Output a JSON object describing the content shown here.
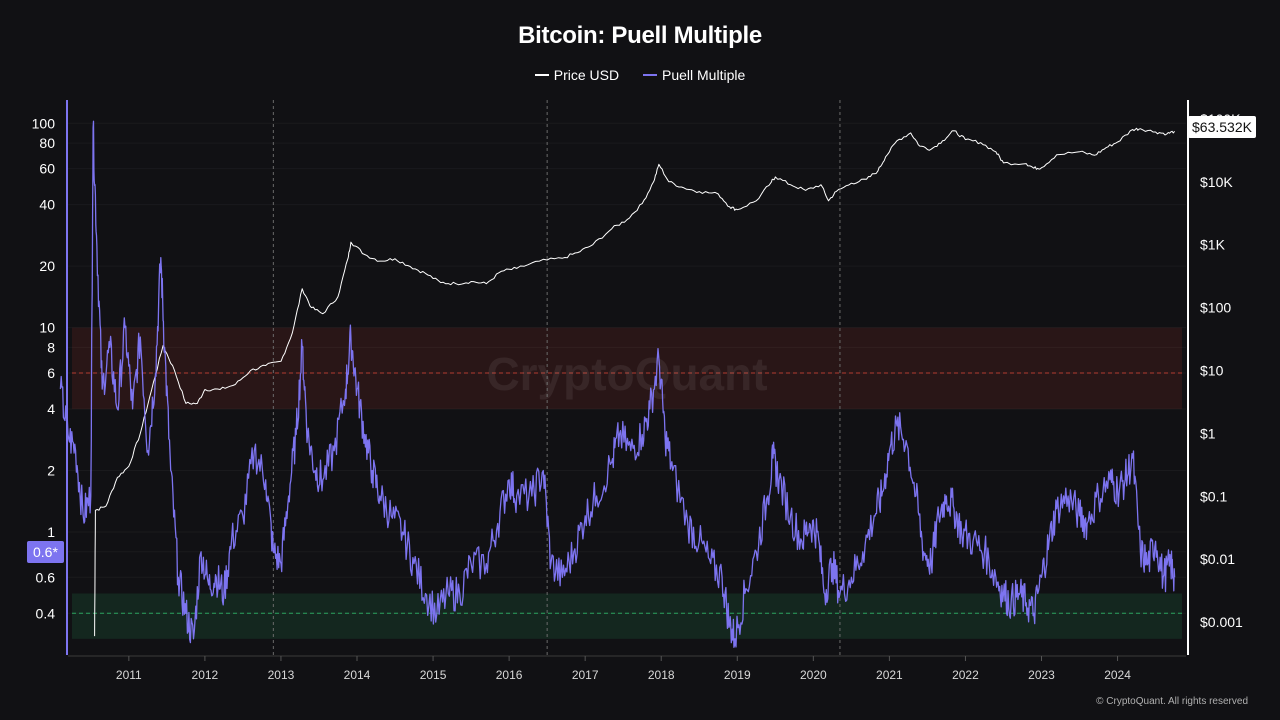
{
  "title": "Bitcoin: Puell Multiple",
  "legend": [
    {
      "name": "Price USD",
      "color": "#ffffff"
    },
    {
      "name": "Puell Multiple",
      "color": "#7d74f0"
    }
  ],
  "watermark": "CryptoQuant",
  "copyright": "© CryptoQuant. All rights reserved",
  "price_badge": "$63.532K",
  "puell_badge": "0.6*",
  "chart_data": {
    "type": "line",
    "x_axis": {
      "ticks": [
        "2011",
        "2012",
        "2013",
        "2014",
        "2015",
        "2016",
        "2017",
        "2018",
        "2019",
        "2020",
        "2021",
        "2022",
        "2023",
        "2024"
      ],
      "range": [
        2010.2,
        2024.9
      ]
    },
    "left_axis": {
      "scale": "log",
      "ticks": [
        "100",
        "80",
        "60",
        "40",
        "20",
        "10",
        "8",
        "6",
        "4",
        "2",
        "1",
        "0.8",
        "0.6",
        "0.4"
      ],
      "range": [
        0.25,
        130
      ]
    },
    "right_axis": {
      "scale": "log",
      "ticks": [
        "$100K",
        "$10K",
        "$1K",
        "$100",
        "$10",
        "$1",
        "$0.1",
        "$0.01",
        "$0.001"
      ],
      "range": [
        0.0003,
        200000
      ]
    },
    "halving_dates": [
      2012.9,
      2016.5,
      2020.35
    ],
    "bands": [
      {
        "name": "overheated",
        "from": 4,
        "to": 10,
        "line": 6,
        "color": "#c0392b"
      },
      {
        "name": "undervalued",
        "from": 0.3,
        "to": 0.5,
        "line": 0.4,
        "color": "#27ae60"
      }
    ],
    "series": [
      {
        "name": "Price USD",
        "axis": "right",
        "color": "#ffffff",
        "points": [
          [
            2010.55,
            0.0006
          ],
          [
            2010.56,
            0.06
          ],
          [
            2010.7,
            0.07
          ],
          [
            2010.85,
            0.2
          ],
          [
            2011.0,
            0.3
          ],
          [
            2011.15,
            1
          ],
          [
            2011.3,
            5
          ],
          [
            2011.45,
            25
          ],
          [
            2011.6,
            10
          ],
          [
            2011.75,
            3
          ],
          [
            2011.9,
            3
          ],
          [
            2012.0,
            5
          ],
          [
            2012.2,
            5
          ],
          [
            2012.4,
            6
          ],
          [
            2012.6,
            10
          ],
          [
            2012.8,
            12
          ],
          [
            2013.0,
            14
          ],
          [
            2013.15,
            40
          ],
          [
            2013.28,
            200
          ],
          [
            2013.4,
            100
          ],
          [
            2013.55,
            80
          ],
          [
            2013.75,
            150
          ],
          [
            2013.88,
            600
          ],
          [
            2013.92,
            1100
          ],
          [
            2014.1,
            700
          ],
          [
            2014.3,
            550
          ],
          [
            2014.5,
            600
          ],
          [
            2014.7,
            450
          ],
          [
            2014.9,
            350
          ],
          [
            2015.1,
            250
          ],
          [
            2015.3,
            240
          ],
          [
            2015.5,
            260
          ],
          [
            2015.7,
            240
          ],
          [
            2015.9,
            380
          ],
          [
            2016.1,
            420
          ],
          [
            2016.4,
            550
          ],
          [
            2016.7,
            610
          ],
          [
            2016.9,
            750
          ],
          [
            2017.1,
            1000
          ],
          [
            2017.35,
            1800
          ],
          [
            2017.55,
            2500
          ],
          [
            2017.75,
            4500
          ],
          [
            2017.9,
            10000
          ],
          [
            2017.97,
            19000
          ],
          [
            2018.1,
            10000
          ],
          [
            2018.3,
            8000
          ],
          [
            2018.5,
            7000
          ],
          [
            2018.75,
            6400
          ],
          [
            2018.9,
            4000
          ],
          [
            2019.0,
            3600
          ],
          [
            2019.25,
            5000
          ],
          [
            2019.45,
            10000
          ],
          [
            2019.5,
            12000
          ],
          [
            2019.7,
            9000
          ],
          [
            2019.9,
            7300
          ],
          [
            2020.1,
            9000
          ],
          [
            2020.2,
            5000
          ],
          [
            2020.3,
            7000
          ],
          [
            2020.5,
            9500
          ],
          [
            2020.7,
            11000
          ],
          [
            2020.85,
            15000
          ],
          [
            2020.95,
            25000
          ],
          [
            2021.1,
            45000
          ],
          [
            2021.28,
            60000
          ],
          [
            2021.4,
            37000
          ],
          [
            2021.55,
            33000
          ],
          [
            2021.7,
            45000
          ],
          [
            2021.85,
            65000
          ],
          [
            2022.0,
            47000
          ],
          [
            2022.2,
            42000
          ],
          [
            2022.4,
            30000
          ],
          [
            2022.5,
            20000
          ],
          [
            2022.8,
            19500
          ],
          [
            2022.9,
            16500
          ],
          [
            2023.0,
            16800
          ],
          [
            2023.2,
            27000
          ],
          [
            2023.5,
            30000
          ],
          [
            2023.7,
            26500
          ],
          [
            2023.85,
            35000
          ],
          [
            2024.0,
            43000
          ],
          [
            2024.2,
            68000
          ],
          [
            2024.3,
            70000
          ],
          [
            2024.5,
            62000
          ],
          [
            2024.65,
            58000
          ],
          [
            2024.75,
            63532
          ]
        ]
      },
      {
        "name": "Puell Multiple",
        "axis": "left",
        "color": "#7d74f0",
        "points": [
          [
            2010.1,
            5
          ],
          [
            2010.2,
            3
          ],
          [
            2010.3,
            2.5
          ],
          [
            2010.4,
            1.2
          ],
          [
            2010.5,
            1.5
          ],
          [
            2010.53,
            95
          ],
          [
            2010.58,
            25
          ],
          [
            2010.65,
            5
          ],
          [
            2010.75,
            8
          ],
          [
            2010.85,
            4
          ],
          [
            2010.95,
            10
          ],
          [
            2011.05,
            4
          ],
          [
            2011.15,
            9
          ],
          [
            2011.25,
            2.5
          ],
          [
            2011.35,
            6
          ],
          [
            2011.42,
            22
          ],
          [
            2011.47,
            8
          ],
          [
            2011.55,
            2
          ],
          [
            2011.65,
            0.6
          ],
          [
            2011.75,
            0.4
          ],
          [
            2011.85,
            0.3
          ],
          [
            2011.95,
            0.8
          ],
          [
            2012.05,
            0.55
          ],
          [
            2012.15,
            0.6
          ],
          [
            2012.25,
            0.5
          ],
          [
            2012.35,
            0.9
          ],
          [
            2012.5,
            1.2
          ],
          [
            2012.65,
            2.5
          ],
          [
            2012.8,
            1.8
          ],
          [
            2012.9,
            0.8
          ],
          [
            2013.0,
            0.7
          ],
          [
            2013.1,
            1.5
          ],
          [
            2013.2,
            3
          ],
          [
            2013.28,
            8
          ],
          [
            2013.35,
            3
          ],
          [
            2013.45,
            2
          ],
          [
            2013.55,
            1.8
          ],
          [
            2013.7,
            2.5
          ],
          [
            2013.85,
            5
          ],
          [
            2013.92,
            9
          ],
          [
            2014.0,
            5
          ],
          [
            2014.1,
            3
          ],
          [
            2014.2,
            2
          ],
          [
            2014.3,
            1.5
          ],
          [
            2014.45,
            1.2
          ],
          [
            2014.6,
            1
          ],
          [
            2014.75,
            0.7
          ],
          [
            2014.9,
            0.5
          ],
          [
            2015.05,
            0.4
          ],
          [
            2015.2,
            0.5
          ],
          [
            2015.35,
            0.5
          ],
          [
            2015.5,
            0.7
          ],
          [
            2015.7,
            0.7
          ],
          [
            2015.85,
            1.1
          ],
          [
            2016.0,
            1.8
          ],
          [
            2016.1,
            1.5
          ],
          [
            2016.3,
            1.5
          ],
          [
            2016.45,
            2
          ],
          [
            2016.55,
            0.7
          ],
          [
            2016.7,
            0.6
          ],
          [
            2016.85,
            0.8
          ],
          [
            2017.0,
            1.2
          ],
          [
            2017.15,
            1.5
          ],
          [
            2017.35,
            2.2
          ],
          [
            2017.45,
            3
          ],
          [
            2017.6,
            2.5
          ],
          [
            2017.75,
            3
          ],
          [
            2017.85,
            4
          ],
          [
            2017.97,
            7
          ],
          [
            2018.05,
            3
          ],
          [
            2018.15,
            2
          ],
          [
            2018.35,
            1.1
          ],
          [
            2018.5,
            0.9
          ],
          [
            2018.65,
            0.7
          ],
          [
            2018.8,
            0.6
          ],
          [
            2018.9,
            0.35
          ],
          [
            2018.97,
            0.3
          ],
          [
            2019.1,
            0.5
          ],
          [
            2019.25,
            0.8
          ],
          [
            2019.4,
            1.5
          ],
          [
            2019.47,
            2.3
          ],
          [
            2019.55,
            1.8
          ],
          [
            2019.7,
            1.2
          ],
          [
            2019.85,
            0.9
          ],
          [
            2019.95,
            1.1
          ],
          [
            2020.05,
            1
          ],
          [
            2020.15,
            0.5
          ],
          [
            2020.25,
            0.7
          ],
          [
            2020.35,
            0.5
          ],
          [
            2020.5,
            0.6
          ],
          [
            2020.65,
            0.8
          ],
          [
            2020.8,
            1.2
          ],
          [
            2020.9,
            1.5
          ],
          [
            2021.0,
            2.5
          ],
          [
            2021.1,
            3.3
          ],
          [
            2021.22,
            2.8
          ],
          [
            2021.35,
            1.5
          ],
          [
            2021.45,
            0.8
          ],
          [
            2021.55,
            0.7
          ],
          [
            2021.65,
            1.2
          ],
          [
            2021.75,
            1.5
          ],
          [
            2021.85,
            1.3
          ],
          [
            2021.95,
            1
          ],
          [
            2022.1,
            0.9
          ],
          [
            2022.25,
            0.8
          ],
          [
            2022.4,
            0.6
          ],
          [
            2022.5,
            0.5
          ],
          [
            2022.6,
            0.45
          ],
          [
            2022.7,
            0.5
          ],
          [
            2022.8,
            0.45
          ],
          [
            2022.9,
            0.4
          ],
          [
            2023.0,
            0.6
          ],
          [
            2023.1,
            0.9
          ],
          [
            2023.2,
            1.3
          ],
          [
            2023.35,
            1.5
          ],
          [
            2023.5,
            1.2
          ],
          [
            2023.6,
            1.1
          ],
          [
            2023.75,
            1.5
          ],
          [
            2023.9,
            1.8
          ],
          [
            2024.0,
            1.6
          ],
          [
            2024.1,
            1.8
          ],
          [
            2024.2,
            2.3
          ],
          [
            2024.3,
            0.8
          ],
          [
            2024.4,
            0.7
          ],
          [
            2024.5,
            0.9
          ],
          [
            2024.6,
            0.6
          ],
          [
            2024.7,
            0.7
          ],
          [
            2024.75,
            0.6
          ]
        ]
      }
    ]
  }
}
